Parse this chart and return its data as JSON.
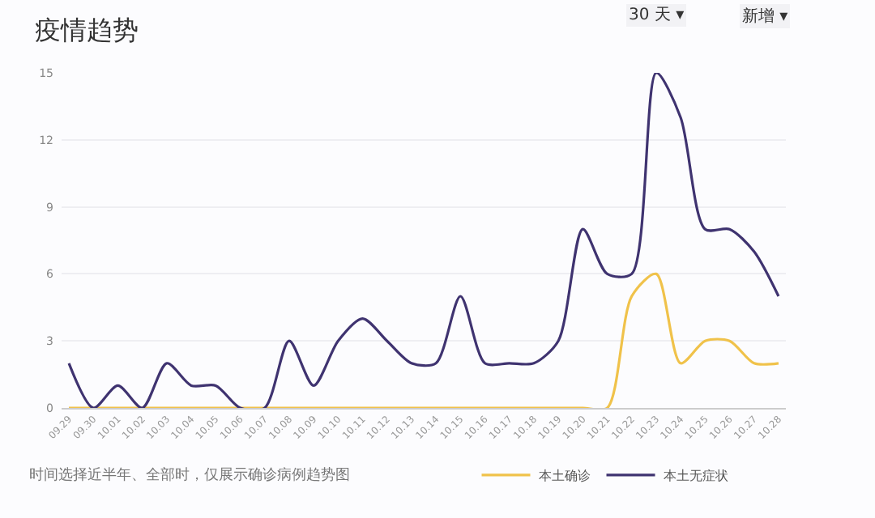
{
  "chart_data": {
    "type": "line",
    "title": "疫情趋势",
    "categories": [
      "09.29",
      "09.30",
      "10.01",
      "10.02",
      "10.03",
      "10.04",
      "10.05",
      "10.06",
      "10.07",
      "10.08",
      "10.09",
      "10.10",
      "10.11",
      "10.12",
      "10.13",
      "10.14",
      "10.15",
      "10.16",
      "10.17",
      "10.18",
      "10.19",
      "10.20",
      "10.21",
      "10.22",
      "10.23",
      "10.24",
      "10.25",
      "10.26",
      "10.27",
      "10.28"
    ],
    "series": [
      {
        "name": "本土确诊",
        "color": "#f0c24a",
        "values": [
          0,
          0,
          0,
          0,
          0,
          0,
          0,
          0,
          0,
          0,
          0,
          0,
          0,
          0,
          0,
          0,
          0,
          0,
          0,
          0,
          0,
          0,
          0,
          5,
          6,
          2,
          3,
          3,
          2,
          2
        ]
      },
      {
        "name": "本土无症状",
        "color": "#3f3370",
        "values": [
          2,
          0,
          1,
          0,
          2,
          1,
          1,
          0,
          0,
          3,
          1,
          3,
          4,
          3,
          2,
          2,
          5,
          2,
          2,
          2,
          3,
          8,
          6,
          6,
          15,
          13,
          8,
          8,
          7,
          5
        ]
      }
    ],
    "ylim": [
      0,
      15
    ],
    "yticks": [
      0,
      3,
      6,
      9,
      12,
      15
    ],
    "grid": "y",
    "legend": "bottom",
    "marker": "none",
    "line_style": "solid",
    "annotations": [
      "30 天 ▾",
      "新增 ▾",
      "时间选择近半年、全部时，仅展示确诊病例趋势图"
    ]
  }
}
